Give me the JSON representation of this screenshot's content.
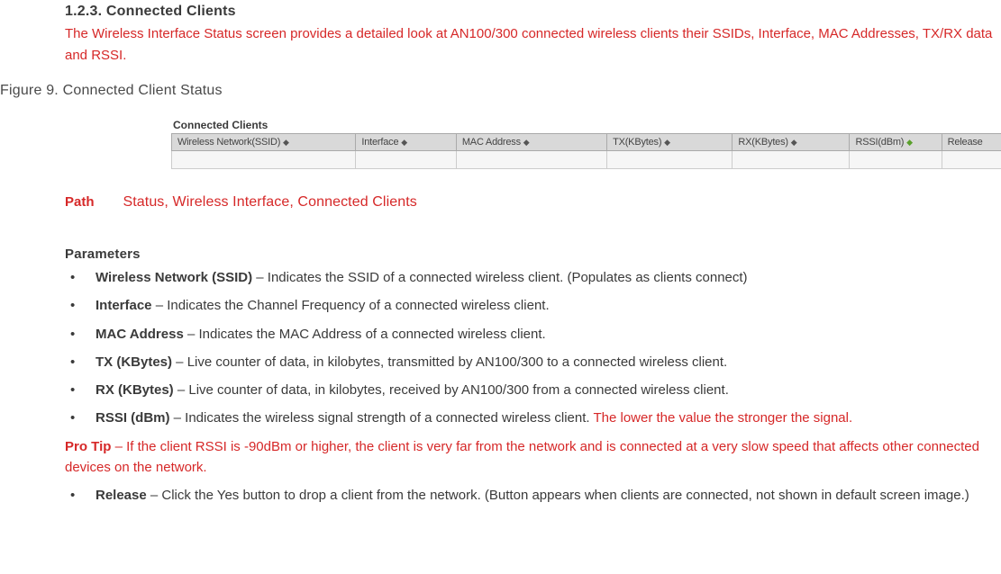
{
  "section_heading": "1.2.3. Connected Clients",
  "intro_text": "The Wireless Interface Status screen provides a detailed look at AN100/300 connected wireless clients their SSIDs, Interface, MAC Addresses, TX/RX data and RSSI.",
  "figure_caption": "Figure 9. Connected Client Status",
  "screenshot": {
    "panel_label": "Connected Clients",
    "columns": [
      {
        "label": "Wireless Network(SSID)",
        "sort": "◆",
        "width": "22%"
      },
      {
        "label": "Interface",
        "sort": "◆",
        "width": "12%"
      },
      {
        "label": "MAC Address",
        "sort": "◆",
        "width": "18%"
      },
      {
        "label": "TX(KBytes)",
        "sort": "◆",
        "width": "15%"
      },
      {
        "label": "RX(KBytes)",
        "sort": "◆",
        "width": "14%"
      },
      {
        "label": "RSSI(dBm)",
        "sort": "◆",
        "sort_green": true,
        "width": "11%"
      },
      {
        "label": "Release",
        "sort": "",
        "width": "8%"
      }
    ]
  },
  "path_label": "Path",
  "path_value": "Status, Wireless Interface, Connected Clients",
  "params_heading": "Parameters",
  "params": [
    {
      "label": "Wireless Network (SSID)",
      "desc": " – Indicates the SSID of a connected wireless client. (Populates as clients connect)"
    },
    {
      "label": "Interface",
      "desc": " – Indicates the Channel Frequency of a connected wireless client."
    },
    {
      "label": "MAC Address",
      "desc": " – Indicates the MAC Address of a connected wireless client."
    },
    {
      "label": "TX (KBytes)",
      "desc": " – Live counter of data, in kilobytes, transmitted by AN100/300 to a connected wireless client."
    },
    {
      "label": "RX (KBytes)",
      "desc": " – Live counter of data, in kilobytes, received by AN100/300 from a connected wireless client."
    },
    {
      "label": "RSSI (dBm)",
      "desc": " – Indicates the wireless signal strength of a connected wireless client. ",
      "extra_red": "The lower the value the stronger the signal."
    }
  ],
  "pro_tip_label": "Pro Tip",
  "pro_tip_text": " – If the client RSSI is -90dBm or higher, the client is very far from the network and is connected at a very slow speed that affects other connected devices on the network.",
  "release_param_label": "Release",
  "release_param_desc": " – Click the Yes button to drop a client from the network. (Button appears when clients are connected, not shown in default screen image.)",
  "colors": {
    "red": "#d62828",
    "text": "#3a3a3a",
    "header_bg": "#d9d9d9",
    "row_bg": "#f6f6f6",
    "border": "#aaa"
  }
}
